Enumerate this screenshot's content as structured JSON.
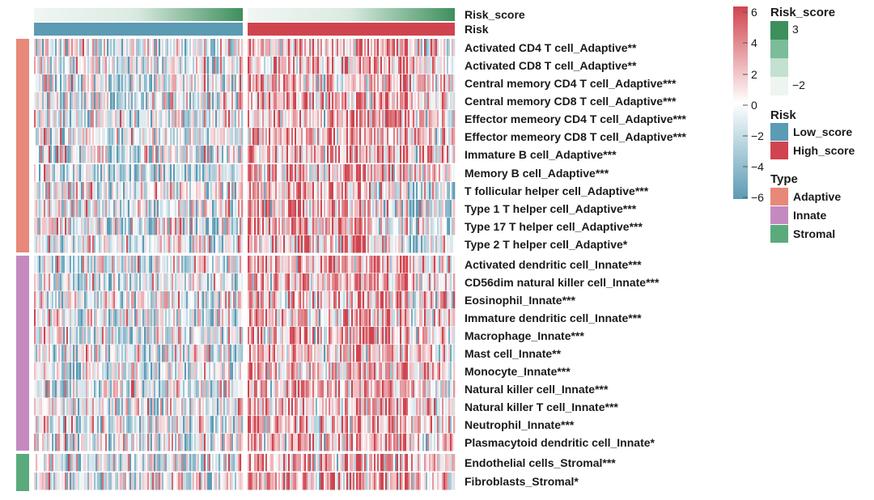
{
  "chart_data": {
    "type": "heatmap",
    "groups": [
      "Low_score",
      "High_score"
    ],
    "annotation_rows": [
      "Risk_score",
      "Risk"
    ],
    "rows": [
      {
        "label": "Activated CD4 T cell_Adaptive**",
        "type": "Adaptive"
      },
      {
        "label": "Activated CD8 T cell_Adaptive**",
        "type": "Adaptive"
      },
      {
        "label": "Central memory CD4 T cell_Adaptive***",
        "type": "Adaptive"
      },
      {
        "label": "Central memory CD8 T cell_Adaptive***",
        "type": "Adaptive"
      },
      {
        "label": "Effector memeory CD4 T cell_Adaptive***",
        "type": "Adaptive"
      },
      {
        "label": "Effector memeory CD8 T cell_Adaptive***",
        "type": "Adaptive"
      },
      {
        "label": "Immature  B cell_Adaptive***",
        "type": "Adaptive"
      },
      {
        "label": "Memory B cell_Adaptive***",
        "type": "Adaptive"
      },
      {
        "label": "T follicular helper cell_Adaptive***",
        "type": "Adaptive"
      },
      {
        "label": "Type 1 T helper cell_Adaptive***",
        "type": "Adaptive"
      },
      {
        "label": "Type 17 T helper cell_Adaptive***",
        "type": "Adaptive"
      },
      {
        "label": "Type 2 T helper cell_Adaptive*",
        "type": "Adaptive"
      },
      {
        "label": "Activated dendritic cell_Innate***",
        "type": "Innate"
      },
      {
        "label": "CD56dim natural killer cell_Innate***",
        "type": "Innate"
      },
      {
        "label": "Eosinophil_Innate***",
        "type": "Innate"
      },
      {
        "label": "Immature dendritic cell_Innate***",
        "type": "Innate"
      },
      {
        "label": "Macrophage_Innate***",
        "type": "Innate"
      },
      {
        "label": "Mast cell_Innate**",
        "type": "Innate"
      },
      {
        "label": "Monocyte_Innate***",
        "type": "Innate"
      },
      {
        "label": "Natural killer cell_Innate***",
        "type": "Innate"
      },
      {
        "label": "Natural killer T cell_Innate***",
        "type": "Innate"
      },
      {
        "label": "Neutrophil_Innate***",
        "type": "Innate"
      },
      {
        "label": "Plasmacytoid dendritic cell_Innate*",
        "type": "Innate"
      },
      {
        "label": "Endothelial cells_Stromal***",
        "type": "Stromal"
      },
      {
        "label": "Fibroblasts_Stromal*",
        "type": "Stromal"
      }
    ],
    "color_scale": {
      "ticks": [
        "6",
        "4",
        "2",
        "0",
        "−2",
        "−4",
        "−6"
      ],
      "range": [
        -6,
        6
      ],
      "low_color": "#5b9bb4",
      "mid_color": "#ffffff",
      "high_color": "#d0444f"
    },
    "legends": {
      "risk_score": {
        "title": "Risk_score",
        "max_label": "3",
        "min_label": "−2",
        "colors": [
          "#3d8f5c",
          "#7cbc98",
          "#c3e0d0",
          "#eef5f1"
        ]
      },
      "risk": {
        "title": "Risk",
        "items": [
          {
            "label": "Low_score",
            "color": "#5b9bb4"
          },
          {
            "label": "High_score",
            "color": "#d0444f"
          }
        ]
      },
      "type": {
        "title": "Type",
        "items": [
          {
            "label": "Adaptive",
            "color": "#e88878"
          },
          {
            "label": "Innate",
            "color": "#c48ac0"
          },
          {
            "label": "Stromal",
            "color": "#5aaa7c"
          }
        ]
      }
    },
    "grid": false
  }
}
